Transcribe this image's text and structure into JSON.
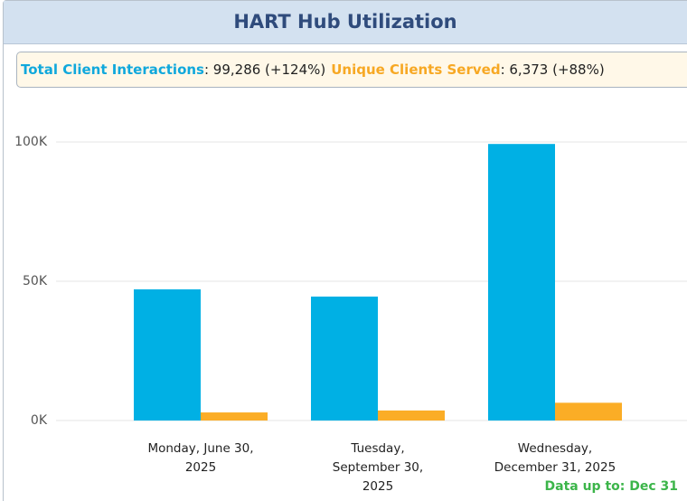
{
  "chart_data": {
    "type": "bar",
    "title": "HART Hub Utilization",
    "summary": {
      "total_label": "Total Client Interactions",
      "total_value": ": 99,286 (+124%)",
      "unique_label": "Unique Clients Served",
      "unique_value": ": 6,373 (+88%)"
    },
    "categories": [
      "Monday, June 30, 2025",
      "Tuesday, September 30, 2025",
      "Wednesday, December 31, 2025"
    ],
    "series": [
      {
        "name": "Total Client Interactions",
        "color": "#00b0e4",
        "values": [
          47100,
          44500,
          99286
        ]
      },
      {
        "name": "Unique Clients Served",
        "color": "#fbad26",
        "values": [
          2900,
          3600,
          6373
        ]
      }
    ],
    "ylim": [
      0,
      100000
    ],
    "yticks": [
      {
        "value": 0,
        "label": "0K"
      },
      {
        "value": 50000,
        "label": "50K"
      },
      {
        "value": 100000,
        "label": "100K"
      }
    ],
    "grid": true,
    "note": "Data up to: Dec 31"
  }
}
